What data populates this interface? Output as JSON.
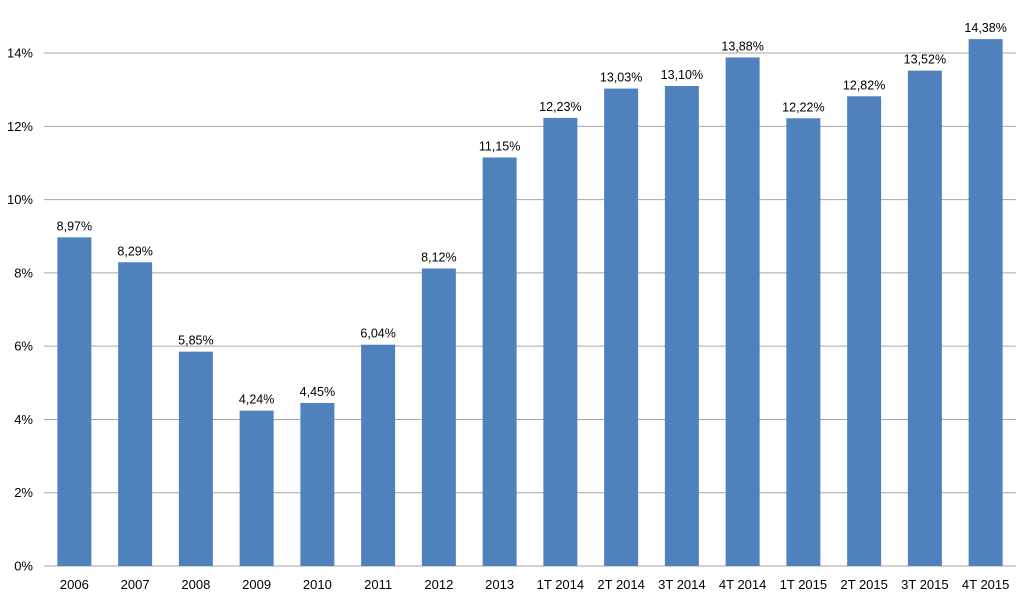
{
  "chart_data": {
    "type": "bar",
    "title": "",
    "xlabel": "",
    "ylabel": "",
    "categories": [
      "2006",
      "2007",
      "2008",
      "2009",
      "2010",
      "2011",
      "2012",
      "2013",
      "1T 2014",
      "2T 2014",
      "3T 2014",
      "4T 2014",
      "1T 2015",
      "2T 2015",
      "3T 2015",
      "4T 2015"
    ],
    "values": [
      8.97,
      8.29,
      5.85,
      4.24,
      4.45,
      6.04,
      8.12,
      11.15,
      12.23,
      13.03,
      13.1,
      13.88,
      12.22,
      12.82,
      13.52,
      14.38
    ],
    "data_labels": [
      "8,97%",
      "8,29%",
      "5,85%",
      "4,24%",
      "4,45%",
      "6,04%",
      "8,12%",
      "11,15%",
      "12,23%",
      "13,03%",
      "13,10%",
      "13,88%",
      "12,22%",
      "12,82%",
      "13,52%",
      "14,38%"
    ],
    "ylim": [
      0,
      14.5
    ],
    "y_ticks": [
      0,
      2,
      4,
      6,
      8,
      10,
      12,
      14
    ],
    "y_tick_labels": [
      "0%",
      "2%",
      "4%",
      "6%",
      "8%",
      "10%",
      "12%",
      "14%"
    ],
    "grid": true,
    "legend": "none",
    "bar_color": "#4f81bd",
    "grid_color": "#a6a6a6"
  }
}
